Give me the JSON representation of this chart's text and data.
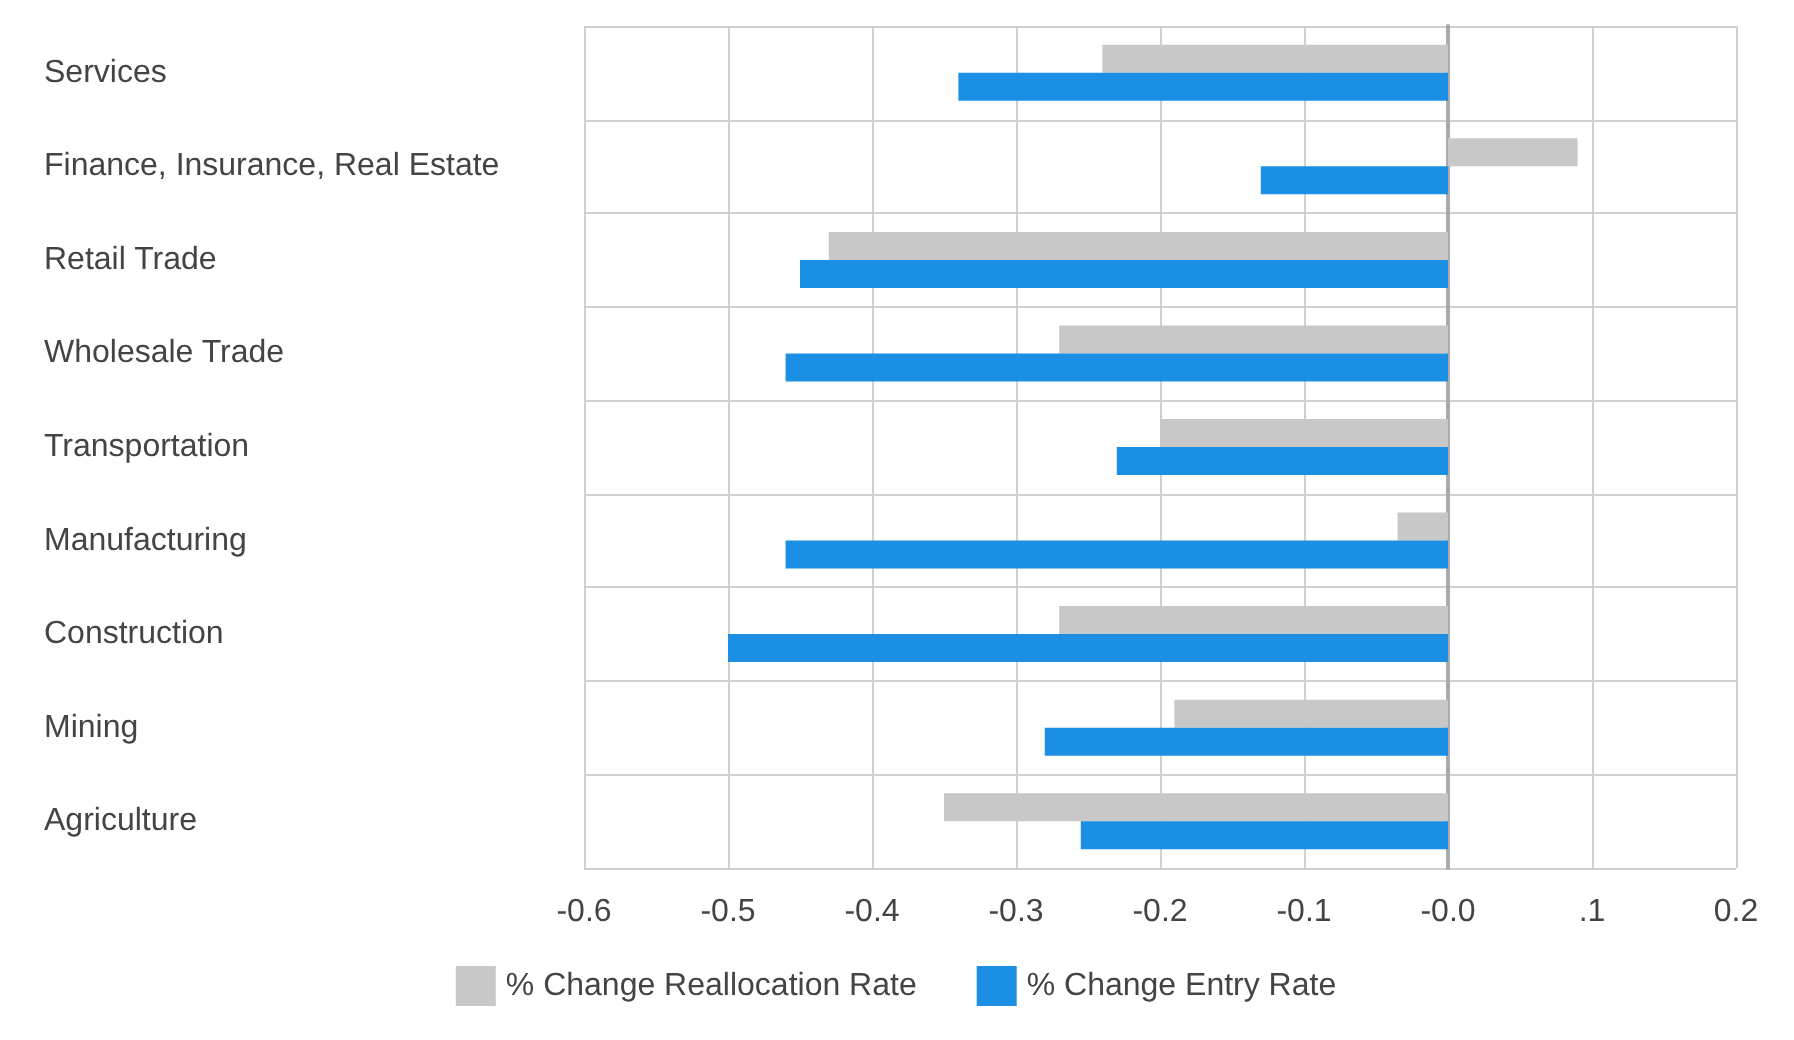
{
  "chart_data": {
    "type": "bar",
    "orientation": "horizontal",
    "categories": [
      "Services",
      "Finance, Insurance, Real Estate",
      "Retail Trade",
      "Wholesale Trade",
      "Transportation",
      "Manufacturing",
      "Construction",
      "Mining",
      "Agriculture"
    ],
    "series": [
      {
        "name": "% Change Reallocation Rate",
        "color": "#c8c8c8",
        "values": [
          -0.24,
          0.09,
          -0.43,
          -0.27,
          -0.2,
          -0.035,
          -0.27,
          -0.19,
          -0.35
        ]
      },
      {
        "name": "% Change Entry Rate",
        "color": "#1a8fe3",
        "values": [
          -0.34,
          -0.13,
          -0.45,
          -0.46,
          -0.23,
          -0.46,
          -0.5,
          -0.28,
          -0.255
        ]
      }
    ],
    "xlim": [
      -0.6,
      0.2
    ],
    "xticks": [
      -0.6,
      -0.5,
      -0.4,
      -0.3,
      -0.2,
      -0.1,
      {
        "value": 0,
        "label": "-0.0"
      },
      {
        "value": 0.1,
        "label": ".1"
      },
      0.2
    ],
    "grid": true,
    "legend": "bottom"
  }
}
